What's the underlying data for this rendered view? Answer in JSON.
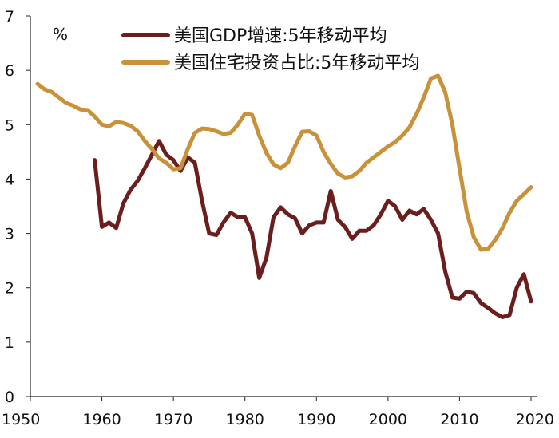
{
  "chart_data": {
    "type": "line",
    "unit_label": "%",
    "xlim": [
      1950,
      2020
    ],
    "ylim": [
      0,
      7
    ],
    "x_ticks": [
      "1950",
      "1960",
      "1970",
      "1980",
      "1990",
      "2000",
      "2010",
      "2020"
    ],
    "y_ticks": [
      "0",
      "1",
      "2",
      "3",
      "4",
      "5",
      "6",
      "7"
    ],
    "grid": false,
    "legend": "top",
    "series": [
      {
        "name": "美国GDP增速:5年移动平均",
        "color": "#6b1e1e",
        "points": [
          [
            1959,
            4.35
          ],
          [
            1960,
            3.12
          ],
          [
            1961,
            3.2
          ],
          [
            1962,
            3.1
          ],
          [
            1963,
            3.55
          ],
          [
            1964,
            3.8
          ],
          [
            1965,
            3.97
          ],
          [
            1966,
            4.2
          ],
          [
            1967,
            4.45
          ],
          [
            1968,
            4.7
          ],
          [
            1969,
            4.45
          ],
          [
            1970,
            4.35
          ],
          [
            1971,
            4.15
          ],
          [
            1972,
            4.4
          ],
          [
            1973,
            4.3
          ],
          [
            1974,
            3.6
          ],
          [
            1975,
            3.0
          ],
          [
            1976,
            2.97
          ],
          [
            1977,
            3.2
          ],
          [
            1978,
            3.38
          ],
          [
            1979,
            3.3
          ],
          [
            1980,
            3.3
          ],
          [
            1981,
            3.0
          ],
          [
            1982,
            2.18
          ],
          [
            1983,
            2.55
          ],
          [
            1984,
            3.3
          ],
          [
            1985,
            3.48
          ],
          [
            1986,
            3.35
          ],
          [
            1987,
            3.28
          ],
          [
            1988,
            3.0
          ],
          [
            1989,
            3.15
          ],
          [
            1990,
            3.2
          ],
          [
            1991,
            3.2
          ],
          [
            1992,
            3.78
          ],
          [
            1993,
            3.25
          ],
          [
            1994,
            3.12
          ],
          [
            1995,
            2.9
          ],
          [
            1996,
            3.05
          ],
          [
            1997,
            3.05
          ],
          [
            1998,
            3.15
          ],
          [
            1999,
            3.35
          ],
          [
            2000,
            3.6
          ],
          [
            2001,
            3.5
          ],
          [
            2002,
            3.25
          ],
          [
            2003,
            3.42
          ],
          [
            2004,
            3.35
          ],
          [
            2005,
            3.45
          ],
          [
            2006,
            3.25
          ],
          [
            2007,
            3.0
          ],
          [
            2008,
            2.3
          ],
          [
            2009,
            1.82
          ],
          [
            2010,
            1.8
          ],
          [
            2011,
            1.93
          ],
          [
            2012,
            1.9
          ],
          [
            2013,
            1.72
          ],
          [
            2014,
            1.63
          ],
          [
            2015,
            1.53
          ],
          [
            2016,
            1.46
          ],
          [
            2017,
            1.5
          ],
          [
            2018,
            2.0
          ],
          [
            2019,
            2.25
          ],
          [
            2020,
            1.75
          ]
        ]
      },
      {
        "name": "美国住宅投资占比:5年移动平均",
        "color": "#c9923a",
        "points": [
          [
            1951,
            5.75
          ],
          [
            1952,
            5.65
          ],
          [
            1953,
            5.6
          ],
          [
            1954,
            5.5
          ],
          [
            1955,
            5.4
          ],
          [
            1956,
            5.35
          ],
          [
            1957,
            5.28
          ],
          [
            1958,
            5.27
          ],
          [
            1959,
            5.15
          ],
          [
            1960,
            5.0
          ],
          [
            1961,
            4.97
          ],
          [
            1962,
            5.05
          ],
          [
            1963,
            5.03
          ],
          [
            1964,
            4.98
          ],
          [
            1965,
            4.88
          ],
          [
            1966,
            4.7
          ],
          [
            1967,
            4.55
          ],
          [
            1968,
            4.38
          ],
          [
            1969,
            4.3
          ],
          [
            1970,
            4.18
          ],
          [
            1971,
            4.2
          ],
          [
            1972,
            4.55
          ],
          [
            1973,
            4.85
          ],
          [
            1974,
            4.93
          ],
          [
            1975,
            4.92
          ],
          [
            1976,
            4.88
          ],
          [
            1977,
            4.83
          ],
          [
            1978,
            4.85
          ],
          [
            1979,
            5.0
          ],
          [
            1980,
            5.2
          ],
          [
            1981,
            5.18
          ],
          [
            1982,
            4.8
          ],
          [
            1983,
            4.48
          ],
          [
            1984,
            4.27
          ],
          [
            1985,
            4.2
          ],
          [
            1986,
            4.3
          ],
          [
            1987,
            4.6
          ],
          [
            1988,
            4.87
          ],
          [
            1989,
            4.88
          ],
          [
            1990,
            4.8
          ],
          [
            1991,
            4.5
          ],
          [
            1992,
            4.28
          ],
          [
            1993,
            4.1
          ],
          [
            1994,
            4.03
          ],
          [
            1995,
            4.05
          ],
          [
            1996,
            4.15
          ],
          [
            1997,
            4.3
          ],
          [
            1998,
            4.4
          ],
          [
            1999,
            4.5
          ],
          [
            2000,
            4.6
          ],
          [
            2001,
            4.68
          ],
          [
            2002,
            4.8
          ],
          [
            2003,
            4.95
          ],
          [
            2004,
            5.2
          ],
          [
            2005,
            5.5
          ],
          [
            2006,
            5.85
          ],
          [
            2007,
            5.9
          ],
          [
            2008,
            5.6
          ],
          [
            2009,
            5.0
          ],
          [
            2010,
            4.2
          ],
          [
            2011,
            3.4
          ],
          [
            2012,
            2.93
          ],
          [
            2013,
            2.7
          ],
          [
            2014,
            2.72
          ],
          [
            2015,
            2.88
          ],
          [
            2016,
            3.1
          ],
          [
            2017,
            3.38
          ],
          [
            2018,
            3.6
          ],
          [
            2019,
            3.72
          ],
          [
            2020,
            3.85
          ]
        ]
      }
    ]
  }
}
